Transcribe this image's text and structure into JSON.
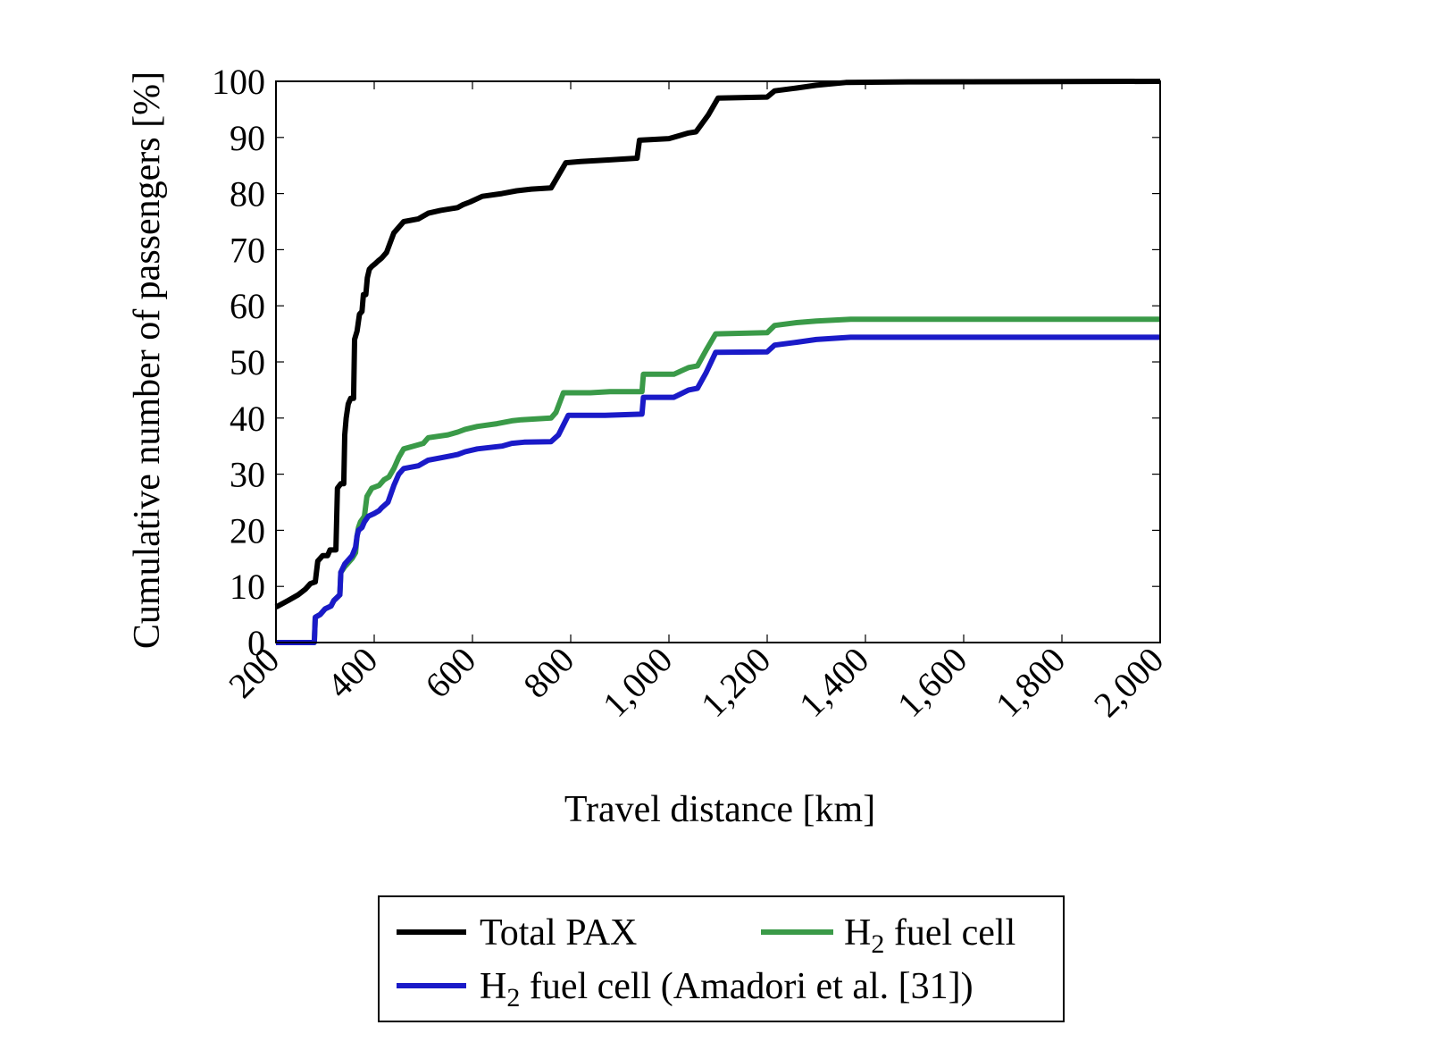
{
  "chart_data": {
    "type": "line",
    "title": "",
    "xlabel": "Travel distance [km]",
    "ylabel": "Cumulative number of passengers [%]",
    "xlim": [
      200,
      2000
    ],
    "ylim": [
      0,
      100
    ],
    "xticks": [
      200,
      400,
      600,
      800,
      1000,
      1200,
      1400,
      1600,
      1800,
      2000
    ],
    "xtick_labels": [
      "200",
      "400",
      "600",
      "800",
      "1,000",
      "1,200",
      "1,400",
      "1,600",
      "1,800",
      "2,000"
    ],
    "yticks": [
      0,
      10,
      20,
      30,
      40,
      50,
      60,
      70,
      80,
      90,
      100
    ],
    "ytick_labels": [
      "0",
      "10",
      "20",
      "30",
      "40",
      "50",
      "60",
      "70",
      "80",
      "90",
      "100"
    ],
    "grid": false,
    "legend": {
      "position": "below",
      "columns": 2
    },
    "series": [
      {
        "name": "Total PAX",
        "color": "#000000",
        "points": [
          [
            200,
            6.3
          ],
          [
            225,
            7.5
          ],
          [
            245,
            8.5
          ],
          [
            260,
            9.5
          ],
          [
            270,
            10.5
          ],
          [
            280,
            10.8
          ],
          [
            285,
            14.5
          ],
          [
            295,
            15.5
          ],
          [
            305,
            15.5
          ],
          [
            310,
            16.5
          ],
          [
            322,
            16.5
          ],
          [
            325,
            27.5
          ],
          [
            332,
            28.3
          ],
          [
            338,
            28.3
          ],
          [
            340,
            37
          ],
          [
            343,
            40
          ],
          [
            347,
            42.5
          ],
          [
            352,
            43.5
          ],
          [
            358,
            43.5
          ],
          [
            360,
            54
          ],
          [
            365,
            55.5
          ],
          [
            370,
            58.5
          ],
          [
            375,
            59
          ],
          [
            378,
            62
          ],
          [
            383,
            62
          ],
          [
            386,
            65
          ],
          [
            390,
            66.5
          ],
          [
            395,
            67
          ],
          [
            402,
            67.5
          ],
          [
            408,
            68
          ],
          [
            415,
            68.5
          ],
          [
            425,
            69.5
          ],
          [
            440,
            73
          ],
          [
            455,
            74.5
          ],
          [
            460,
            75
          ],
          [
            490,
            75.5
          ],
          [
            510,
            76.5
          ],
          [
            535,
            77
          ],
          [
            570,
            77.5
          ],
          [
            580,
            78
          ],
          [
            595,
            78.5
          ],
          [
            620,
            79.5
          ],
          [
            660,
            80
          ],
          [
            690,
            80.5
          ],
          [
            720,
            80.8
          ],
          [
            760,
            81
          ],
          [
            790,
            85.5
          ],
          [
            820,
            85.7
          ],
          [
            880,
            86
          ],
          [
            935,
            86.3
          ],
          [
            940,
            89.5
          ],
          [
            1000,
            89.8
          ],
          [
            1040,
            90.8
          ],
          [
            1055,
            91
          ],
          [
            1080,
            94
          ],
          [
            1100,
            97
          ],
          [
            1200,
            97.2
          ],
          [
            1215,
            98.3
          ],
          [
            1260,
            98.8
          ],
          [
            1300,
            99.3
          ],
          [
            1360,
            99.8
          ],
          [
            1500,
            99.9
          ],
          [
            2000,
            100
          ]
        ]
      },
      {
        "name": "H2 fuel cell",
        "color": "#3a9a48",
        "points": [
          [
            200,
            0
          ],
          [
            278,
            0
          ],
          [
            280,
            4.5
          ],
          [
            290,
            5
          ],
          [
            300,
            6
          ],
          [
            312,
            6.5
          ],
          [
            318,
            7.5
          ],
          [
            330,
            8.5
          ],
          [
            332,
            12.5
          ],
          [
            340,
            13.5
          ],
          [
            355,
            15
          ],
          [
            362,
            16
          ],
          [
            365,
            19
          ],
          [
            368,
            20.5
          ],
          [
            372,
            21.5
          ],
          [
            380,
            22.5
          ],
          [
            385,
            26
          ],
          [
            395,
            27.5
          ],
          [
            410,
            28
          ],
          [
            420,
            29
          ],
          [
            430,
            29.5
          ],
          [
            440,
            31
          ],
          [
            450,
            33
          ],
          [
            460,
            34.5
          ],
          [
            480,
            35
          ],
          [
            500,
            35.5
          ],
          [
            510,
            36.5
          ],
          [
            550,
            37
          ],
          [
            570,
            37.5
          ],
          [
            585,
            38
          ],
          [
            610,
            38.5
          ],
          [
            650,
            39
          ],
          [
            680,
            39.5
          ],
          [
            700,
            39.7
          ],
          [
            760,
            40
          ],
          [
            770,
            41
          ],
          [
            785,
            44.5
          ],
          [
            840,
            44.5
          ],
          [
            880,
            44.7
          ],
          [
            945,
            44.7
          ],
          [
            948,
            47.8
          ],
          [
            1010,
            47.8
          ],
          [
            1040,
            49
          ],
          [
            1058,
            49.3
          ],
          [
            1075,
            52
          ],
          [
            1095,
            55
          ],
          [
            1200,
            55.2
          ],
          [
            1215,
            56.5
          ],
          [
            1260,
            57
          ],
          [
            1300,
            57.3
          ],
          [
            1370,
            57.6
          ],
          [
            2000,
            57.6
          ]
        ]
      },
      {
        "name": "H2 fuel cell (Amadori et al. [31])",
        "color": "#1a1ac8",
        "points": [
          [
            200,
            0
          ],
          [
            278,
            0
          ],
          [
            280,
            4.5
          ],
          [
            290,
            5
          ],
          [
            300,
            6
          ],
          [
            312,
            6.5
          ],
          [
            318,
            7.5
          ],
          [
            330,
            8.5
          ],
          [
            332,
            12.5
          ],
          [
            340,
            14
          ],
          [
            355,
            15.5
          ],
          [
            362,
            17
          ],
          [
            365,
            19
          ],
          [
            368,
            20
          ],
          [
            375,
            20.5
          ],
          [
            380,
            21.5
          ],
          [
            388,
            22.5
          ],
          [
            400,
            23
          ],
          [
            410,
            23.5
          ],
          [
            415,
            24
          ],
          [
            428,
            25
          ],
          [
            440,
            28
          ],
          [
            450,
            30
          ],
          [
            460,
            31
          ],
          [
            490,
            31.5
          ],
          [
            510,
            32.5
          ],
          [
            540,
            33
          ],
          [
            570,
            33.5
          ],
          [
            585,
            34
          ],
          [
            610,
            34.5
          ],
          [
            660,
            35
          ],
          [
            680,
            35.5
          ],
          [
            705,
            35.7
          ],
          [
            760,
            35.8
          ],
          [
            775,
            37
          ],
          [
            795,
            40.5
          ],
          [
            870,
            40.5
          ],
          [
            945,
            40.7
          ],
          [
            948,
            43.7
          ],
          [
            1010,
            43.7
          ],
          [
            1040,
            45
          ],
          [
            1058,
            45.3
          ],
          [
            1075,
            48
          ],
          [
            1095,
            51.7
          ],
          [
            1200,
            51.8
          ],
          [
            1215,
            53
          ],
          [
            1260,
            53.5
          ],
          [
            1300,
            54
          ],
          [
            1370,
            54.4
          ],
          [
            2000,
            54.4
          ]
        ]
      }
    ]
  },
  "legend_labels": {
    "total": "Total PAX",
    "h2_main": "H",
    "h2_sub": "2",
    "h2_rest": " fuel cell",
    "amadori_main": "H",
    "amadori_sub": "2",
    "amadori_rest": " fuel cell (Amadori et al. [31])"
  }
}
